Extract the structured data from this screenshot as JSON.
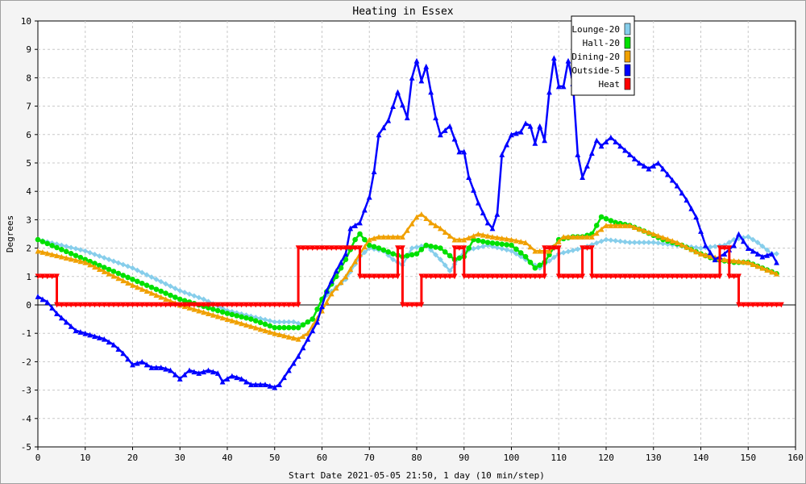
{
  "chart_data": {
    "type": "line",
    "title": "Heating in Essex",
    "xlabel": "Start Date 2021-05-05 21:50, 1 day (10 min/step)",
    "ylabel": "Degrees",
    "xlim": [
      0,
      160
    ],
    "ylim": [
      -5,
      10
    ],
    "xticks": [
      0,
      10,
      20,
      30,
      40,
      50,
      60,
      70,
      80,
      90,
      100,
      110,
      120,
      130,
      140,
      150,
      160
    ],
    "yticks": [
      -5,
      -4,
      -3,
      -2,
      -1,
      0,
      1,
      2,
      3,
      4,
      5,
      6,
      7,
      8,
      9,
      10
    ],
    "grid": true,
    "legend_position": "top-right",
    "series": [
      {
        "name": "Lounge-20",
        "color": "#87ceeb",
        "marker": "diamond",
        "points": [
          [
            0,
            2.3
          ],
          [
            10,
            1.9
          ],
          [
            20,
            1.3
          ],
          [
            30,
            0.5
          ],
          [
            35,
            0.2
          ],
          [
            40,
            -0.2
          ],
          [
            45,
            -0.4
          ],
          [
            50,
            -0.6
          ],
          [
            54,
            -0.6
          ],
          [
            56,
            -0.7
          ],
          [
            58,
            -0.5
          ],
          [
            60,
            0.2
          ],
          [
            65,
            0.9
          ],
          [
            68,
            1.7
          ],
          [
            70,
            2.0
          ],
          [
            73,
            1.9
          ],
          [
            75,
            1.6
          ],
          [
            77,
            1.4
          ],
          [
            79,
            2.0
          ],
          [
            82,
            2.1
          ],
          [
            85,
            1.6
          ],
          [
            87,
            1.2
          ],
          [
            90,
            1.9
          ],
          [
            95,
            2.1
          ],
          [
            100,
            1.9
          ],
          [
            103,
            1.6
          ],
          [
            106,
            1.3
          ],
          [
            110,
            1.8
          ],
          [
            115,
            2.0
          ],
          [
            120,
            2.3
          ],
          [
            125,
            2.2
          ],
          [
            130,
            2.2
          ],
          [
            135,
            2.1
          ],
          [
            140,
            2.0
          ],
          [
            145,
            2.1
          ],
          [
            147,
            2.3
          ],
          [
            150,
            2.4
          ],
          [
            152,
            2.2
          ],
          [
            155,
            1.8
          ],
          [
            156,
            1.8
          ]
        ]
      },
      {
        "name": "Hall-20",
        "color": "#00e000",
        "marker": "circle",
        "points": [
          [
            0,
            2.3
          ],
          [
            10,
            1.6
          ],
          [
            20,
            0.9
          ],
          [
            30,
            0.2
          ],
          [
            40,
            -0.3
          ],
          [
            45,
            -0.5
          ],
          [
            50,
            -0.8
          ],
          [
            55,
            -0.8
          ],
          [
            58,
            -0.5
          ],
          [
            60,
            0.2
          ],
          [
            63,
            1.0
          ],
          [
            65,
            1.6
          ],
          [
            67,
            2.3
          ],
          [
            68,
            2.5
          ],
          [
            70,
            2.1
          ],
          [
            72,
            2.0
          ],
          [
            75,
            1.8
          ],
          [
            77,
            1.7
          ],
          [
            80,
            1.8
          ],
          [
            82,
            2.1
          ],
          [
            85,
            2.0
          ],
          [
            88,
            1.6
          ],
          [
            90,
            1.7
          ],
          [
            92,
            2.3
          ],
          [
            95,
            2.2
          ],
          [
            100,
            2.1
          ],
          [
            103,
            1.7
          ],
          [
            105,
            1.3
          ],
          [
            107,
            1.5
          ],
          [
            110,
            2.3
          ],
          [
            113,
            2.4
          ],
          [
            115,
            2.4
          ],
          [
            117,
            2.5
          ],
          [
            119,
            3.1
          ],
          [
            122,
            2.9
          ],
          [
            125,
            2.8
          ],
          [
            128,
            2.6
          ],
          [
            132,
            2.3
          ],
          [
            136,
            2.1
          ],
          [
            140,
            1.8
          ],
          [
            143,
            1.6
          ],
          [
            147,
            1.5
          ],
          [
            150,
            1.5
          ],
          [
            153,
            1.3
          ],
          [
            156,
            1.1
          ]
        ]
      },
      {
        "name": "Dining-20",
        "color": "#f0a000",
        "marker": "triangle",
        "points": [
          [
            0,
            1.9
          ],
          [
            10,
            1.5
          ],
          [
            20,
            0.7
          ],
          [
            30,
            0.0
          ],
          [
            40,
            -0.5
          ],
          [
            50,
            -1.0
          ],
          [
            55,
            -1.2
          ],
          [
            57,
            -1.0
          ],
          [
            60,
            -0.2
          ],
          [
            62,
            0.4
          ],
          [
            65,
            1.0
          ],
          [
            68,
            1.8
          ],
          [
            70,
            2.3
          ],
          [
            72,
            2.4
          ],
          [
            77,
            2.4
          ],
          [
            80,
            3.1
          ],
          [
            81,
            3.2
          ],
          [
            83,
            2.9
          ],
          [
            85,
            2.7
          ],
          [
            88,
            2.3
          ],
          [
            90,
            2.3
          ],
          [
            93,
            2.5
          ],
          [
            96,
            2.4
          ],
          [
            100,
            2.3
          ],
          [
            103,
            2.2
          ],
          [
            105,
            1.9
          ],
          [
            108,
            1.9
          ],
          [
            111,
            2.4
          ],
          [
            114,
            2.4
          ],
          [
            117,
            2.4
          ],
          [
            120,
            2.8
          ],
          [
            125,
            2.8
          ],
          [
            130,
            2.5
          ],
          [
            135,
            2.2
          ],
          [
            140,
            1.8
          ],
          [
            145,
            1.6
          ],
          [
            150,
            1.5
          ],
          [
            153,
            1.3
          ],
          [
            156,
            1.1
          ]
        ]
      },
      {
        "name": "Outside-5",
        "color": "#0000ff",
        "marker": "triangle",
        "points": [
          [
            0,
            0.3
          ],
          [
            2,
            0.1
          ],
          [
            4,
            -0.3
          ],
          [
            6,
            -0.6
          ],
          [
            8,
            -0.9
          ],
          [
            10,
            -1.0
          ],
          [
            12,
            -1.1
          ],
          [
            14,
            -1.2
          ],
          [
            16,
            -1.4
          ],
          [
            18,
            -1.7
          ],
          [
            20,
            -2.1
          ],
          [
            22,
            -2.0
          ],
          [
            24,
            -2.2
          ],
          [
            26,
            -2.2
          ],
          [
            28,
            -2.3
          ],
          [
            30,
            -2.6
          ],
          [
            32,
            -2.3
          ],
          [
            34,
            -2.4
          ],
          [
            36,
            -2.3
          ],
          [
            38,
            -2.4
          ],
          [
            39,
            -2.7
          ],
          [
            41,
            -2.5
          ],
          [
            43,
            -2.6
          ],
          [
            45,
            -2.8
          ],
          [
            48,
            -2.8
          ],
          [
            50,
            -2.9
          ],
          [
            51,
            -2.8
          ],
          [
            53,
            -2.3
          ],
          [
            55,
            -1.8
          ],
          [
            57,
            -1.2
          ],
          [
            59,
            -0.6
          ],
          [
            61,
            0.5
          ],
          [
            63,
            1.2
          ],
          [
            65,
            1.8
          ],
          [
            66,
            2.7
          ],
          [
            68,
            2.9
          ],
          [
            70,
            3.8
          ],
          [
            71,
            4.7
          ],
          [
            72,
            6.0
          ],
          [
            74,
            6.5
          ],
          [
            75,
            7.0
          ],
          [
            76,
            7.5
          ],
          [
            78,
            6.6
          ],
          [
            79,
            8.0
          ],
          [
            80,
            8.6
          ],
          [
            81,
            7.9
          ],
          [
            82,
            8.4
          ],
          [
            84,
            6.6
          ],
          [
            85,
            6.0
          ],
          [
            87,
            6.3
          ],
          [
            89,
            5.4
          ],
          [
            90,
            5.4
          ],
          [
            91,
            4.5
          ],
          [
            93,
            3.6
          ],
          [
            95,
            2.9
          ],
          [
            96,
            2.7
          ],
          [
            97,
            3.2
          ],
          [
            98,
            5.3
          ],
          [
            100,
            6.0
          ],
          [
            102,
            6.1
          ],
          [
            103,
            6.4
          ],
          [
            104,
            6.3
          ],
          [
            105,
            5.7
          ],
          [
            106,
            6.3
          ],
          [
            107,
            5.8
          ],
          [
            108,
            7.5
          ],
          [
            109,
            8.7
          ],
          [
            110,
            7.7
          ],
          [
            111,
            7.7
          ],
          [
            112,
            8.6
          ],
          [
            113,
            7.8
          ],
          [
            114,
            5.3
          ],
          [
            115,
            4.5
          ],
          [
            116,
            4.9
          ],
          [
            118,
            5.8
          ],
          [
            119,
            5.6
          ],
          [
            121,
            5.9
          ],
          [
            123,
            5.6
          ],
          [
            125,
            5.3
          ],
          [
            127,
            5.0
          ],
          [
            129,
            4.8
          ],
          [
            131,
            5.0
          ],
          [
            133,
            4.6
          ],
          [
            135,
            4.2
          ],
          [
            137,
            3.7
          ],
          [
            139,
            3.1
          ],
          [
            141,
            2.1
          ],
          [
            143,
            1.6
          ],
          [
            145,
            1.8
          ],
          [
            147,
            2.1
          ],
          [
            148,
            2.5
          ],
          [
            150,
            2.0
          ],
          [
            152,
            1.8
          ],
          [
            153,
            1.7
          ],
          [
            155,
            1.8
          ],
          [
            156,
            1.5
          ]
        ]
      },
      {
        "name": "Heat",
        "color": "#ff0000",
        "marker": "triangle-down",
        "step": true,
        "points": [
          [
            0,
            1
          ],
          [
            4,
            1
          ],
          [
            4,
            0
          ],
          [
            55,
            0
          ],
          [
            55,
            2
          ],
          [
            68,
            2
          ],
          [
            68,
            1
          ],
          [
            76,
            1
          ],
          [
            76,
            2
          ],
          [
            77,
            2
          ],
          [
            77,
            0
          ],
          [
            81,
            0
          ],
          [
            81,
            1
          ],
          [
            88,
            1
          ],
          [
            88,
            2
          ],
          [
            90,
            2
          ],
          [
            90,
            1
          ],
          [
            107,
            1
          ],
          [
            107,
            2
          ],
          [
            110,
            2
          ],
          [
            110,
            1
          ],
          [
            115,
            1
          ],
          [
            115,
            2
          ],
          [
            117,
            2
          ],
          [
            117,
            1
          ],
          [
            144,
            1
          ],
          [
            144,
            2
          ],
          [
            146,
            2
          ],
          [
            146,
            1
          ],
          [
            148,
            1
          ],
          [
            148,
            0
          ],
          [
            157,
            0
          ]
        ]
      }
    ]
  }
}
